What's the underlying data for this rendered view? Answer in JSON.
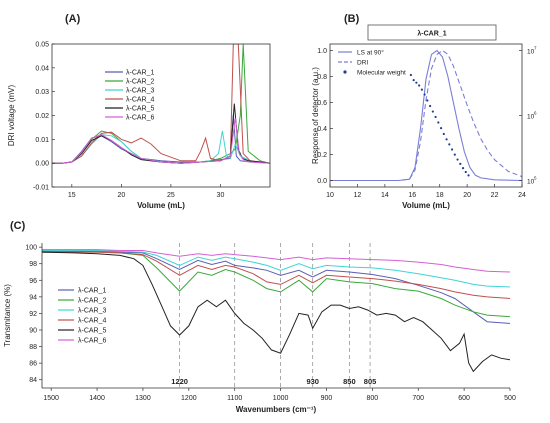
{
  "chart_data": [
    {
      "panel": "(A)",
      "type": "line",
      "title": "",
      "xlabel": "Volume (mL)",
      "ylabel": "DRI voltage (mV)",
      "xlim": [
        13,
        35
      ],
      "ylim": [
        -0.01,
        0.05
      ],
      "xticks": [
        15,
        20,
        25,
        30
      ],
      "yticks": [
        -0.01,
        0,
        0.01,
        0.02,
        0.03,
        0.04,
        0.05
      ],
      "ytick_labels": [
        "-0.01",
        "0.00",
        "0.01",
        "0.02",
        "0.03",
        "0.04",
        "0.05"
      ],
      "grid": false,
      "legend_position": "top-center",
      "series": [
        {
          "name": "λ-CAR_1",
          "color": "#5b5fb3",
          "x": [
            13,
            14,
            15,
            16,
            17,
            18,
            19,
            20,
            21,
            22,
            24,
            26,
            28,
            30,
            31,
            31.3,
            31.6,
            32,
            33,
            35
          ],
          "y": [
            0,
            0,
            0.0005,
            0.005,
            0.0105,
            0.0115,
            0.009,
            0.006,
            0.004,
            0.002,
            0.001,
            0.0005,
            0.0005,
            0.0015,
            0.002,
            0.0205,
            0.003,
            0.001,
            0.0005,
            0
          ]
        },
        {
          "name": "λ-CAR_2",
          "color": "#3aa83a",
          "x": [
            13,
            14,
            15,
            16,
            17,
            18,
            19,
            20,
            21,
            22,
            24,
            26,
            28,
            29,
            30,
            31,
            31.5,
            32,
            32.3,
            32.8,
            34,
            35
          ],
          "y": [
            0,
            0,
            0.0005,
            0.004,
            0.01,
            0.0135,
            0.0125,
            0.009,
            0.005,
            0.002,
            0.0005,
            0,
            0.0005,
            0.001,
            0.002,
            0.004,
            0.006,
            0.02,
            0.05,
            0.005,
            0.001,
            0
          ]
        },
        {
          "name": "λ-CAR_3",
          "color": "#40d4d4",
          "x": [
            13,
            14,
            15,
            16,
            17,
            18,
            19,
            20,
            21,
            22,
            24,
            26,
            28,
            29,
            29.8,
            30.2,
            30.6,
            31,
            31.5,
            32,
            33,
            35
          ],
          "y": [
            0,
            0,
            0.0005,
            0.003,
            0.008,
            0.012,
            0.0115,
            0.009,
            0.005,
            0.002,
            0.0005,
            0,
            0.0005,
            0.001,
            0.004,
            0.0135,
            0.003,
            0.002,
            0.008,
            0.003,
            0.001,
            0
          ]
        },
        {
          "name": "λ-CAR_4",
          "color": "#c0504d",
          "x": [
            13,
            14,
            15,
            16,
            17,
            18,
            19,
            20,
            21,
            22,
            23,
            24,
            26,
            27.5,
            28,
            28.5,
            29,
            30,
            31,
            31.3,
            31.8,
            32.3,
            33,
            35
          ],
          "y": [
            0,
            0,
            0.0005,
            0.003,
            0.0085,
            0.0125,
            0.013,
            0.01,
            0.0085,
            0.0105,
            0.008,
            0.004,
            0.001,
            0.001,
            0.005,
            0.0105,
            0.002,
            0.001,
            0.003,
            0.05,
            0.05,
            0.004,
            0.001,
            0
          ]
        },
        {
          "name": "λ-CAR_5",
          "color": "#222222",
          "x": [
            13,
            14,
            15,
            16,
            17,
            18,
            19,
            20,
            21,
            22,
            24,
            26,
            28,
            30,
            31,
            31.4,
            31.8,
            32.2,
            32.8,
            34,
            35
          ],
          "y": [
            0,
            0,
            0.0005,
            0.004,
            0.0095,
            0.0115,
            0.0095,
            0.0065,
            0.0035,
            0.0015,
            0.0005,
            0,
            0.0005,
            0.001,
            0.003,
            0.025,
            0.006,
            0.002,
            0.001,
            0.0005,
            0
          ]
        },
        {
          "name": "λ-CAR_6",
          "color": "#d55fd5",
          "x": [
            13,
            14,
            15,
            16,
            17,
            18,
            19,
            20,
            21,
            22,
            24,
            26,
            28,
            30,
            31,
            31.5,
            31.9,
            32.4,
            33,
            35
          ],
          "y": [
            0,
            0,
            0.0005,
            0.0045,
            0.0105,
            0.012,
            0.0095,
            0.0065,
            0.004,
            0.002,
            0.0005,
            0,
            0.0005,
            0.001,
            0.003,
            0.019,
            0.004,
            0.001,
            0.0005,
            0
          ]
        }
      ]
    },
    {
      "panel": "(B)",
      "type": "line",
      "title": "λ-CAR_1",
      "xlabel": "Volume (mL)",
      "ylabel": "Response of detector (a.u.)",
      "xlim": [
        10,
        24
      ],
      "ylim": [
        -0.05,
        1.05
      ],
      "xticks": [
        10,
        12,
        14,
        16,
        18,
        20,
        22,
        24
      ],
      "yticks": [
        0,
        0.2,
        0.4,
        0.6,
        0.8,
        1.0
      ],
      "ytick_labels": [
        "0.0",
        "0.2",
        "0.4",
        "0.6",
        "0.8",
        "1.0"
      ],
      "y2_scale": "log",
      "y2lim": [
        100000,
        10000000
      ],
      "y2_labels": [
        "10",
        "5",
        "10",
        "6",
        "10",
        "7"
      ],
      "grid": false,
      "legend_position": "top-left",
      "series": [
        {
          "name": "LS at 90°",
          "color": "#7a7fd6",
          "style": "solid",
          "x": [
            10,
            15,
            15.8,
            16.2,
            16.6,
            17,
            17.4,
            17.8,
            18.2,
            18.6,
            19,
            19.4,
            19.8,
            20.2,
            20.6,
            21,
            22,
            24
          ],
          "y": [
            0,
            0,
            0.01,
            0.1,
            0.4,
            0.78,
            0.97,
            1.0,
            0.95,
            0.8,
            0.6,
            0.4,
            0.22,
            0.1,
            0.04,
            0.02,
            0.005,
            0
          ]
        },
        {
          "name": "DRI",
          "color": "#7a7fd6",
          "style": "dashed",
          "x": [
            10,
            15,
            15.8,
            16.2,
            16.6,
            17,
            17.4,
            17.8,
            18.2,
            18.6,
            19,
            19.5,
            20,
            20.5,
            21,
            21.5,
            22,
            23,
            24
          ],
          "y": [
            0,
            0,
            0.01,
            0.08,
            0.3,
            0.62,
            0.86,
            0.97,
            1.0,
            0.97,
            0.88,
            0.73,
            0.58,
            0.44,
            0.32,
            0.23,
            0.16,
            0.07,
            0.03
          ]
        },
        {
          "name": "Molecular weight",
          "color": "#1f3f8f",
          "style": "dots",
          "x": [
            15.9,
            16.1,
            16.3,
            16.5,
            16.7,
            16.9,
            17.1,
            17.3,
            17.5,
            17.7,
            17.9,
            18.1,
            18.3,
            18.5,
            18.7,
            18.9,
            19.1,
            19.3,
            19.5,
            19.7,
            19.9,
            20.1
          ],
          "y": [
            4200000,
            3500000,
            3200000,
            2900000,
            2500000,
            2100000,
            1700000,
            1400000,
            1150000,
            950000,
            780000,
            640000,
            520000,
            430000,
            360000,
            300000,
            250000,
            210000,
            180000,
            155000,
            135000,
            120000
          ]
        }
      ]
    },
    {
      "panel": "(C)",
      "type": "line",
      "title": "",
      "xlabel": "Wavenumbers (cm⁻¹)",
      "ylabel": "Transmitance (%)",
      "xlim": [
        1520,
        500
      ],
      "ylim": [
        83,
        100.5
      ],
      "xticks": [
        1500,
        1400,
        1300,
        1200,
        1100,
        1000,
        900,
        800,
        700,
        600,
        500
      ],
      "yticks": [
        84,
        86,
        88,
        90,
        92,
        94,
        96,
        98,
        100
      ],
      "grid": false,
      "legend_position": "left",
      "reference_lines": [
        1220,
        1100,
        1000,
        930,
        850,
        805
      ],
      "annotations": [
        {
          "text": "1220",
          "x": 1220
        },
        {
          "text": "930",
          "x": 930
        },
        {
          "text": "850",
          "x": 850
        },
        {
          "text": "805",
          "x": 805
        }
      ],
      "series": [
        {
          "name": "λ-CAR_1",
          "color": "#5b5fb3",
          "x": [
            1520,
            1450,
            1400,
            1350,
            1300,
            1270,
            1220,
            1180,
            1150,
            1120,
            1100,
            1060,
            1030,
            1000,
            960,
            930,
            900,
            850,
            800,
            750,
            700,
            650,
            620,
            580,
            550,
            500
          ],
          "y": [
            99.5,
            99.5,
            99.5,
            99.4,
            99.3,
            98.6,
            97.3,
            98.4,
            97.9,
            98.3,
            97.8,
            97.5,
            97.2,
            96.6,
            97.2,
            96.4,
            97.2,
            97.0,
            96.7,
            96.2,
            95.4,
            94.5,
            93.8,
            92.2,
            91.0,
            90.8
          ]
        },
        {
          "name": "λ-CAR_2",
          "color": "#3aa83a",
          "x": [
            1520,
            1450,
            1400,
            1350,
            1300,
            1270,
            1220,
            1180,
            1150,
            1120,
            1100,
            1060,
            1030,
            1000,
            960,
            930,
            900,
            850,
            800,
            750,
            700,
            650,
            620,
            580,
            550,
            500
          ],
          "y": [
            99.4,
            99.4,
            99.4,
            99.3,
            99.0,
            97.5,
            94.7,
            97.0,
            96.6,
            97.3,
            97.0,
            96.0,
            95.0,
            94.6,
            96.0,
            94.6,
            96.2,
            95.8,
            95.6,
            95.0,
            94.7,
            93.8,
            93.0,
            92.2,
            91.8,
            91.6
          ]
        },
        {
          "name": "λ-CAR_3",
          "color": "#40d4d4",
          "x": [
            1520,
            1450,
            1400,
            1350,
            1300,
            1270,
            1220,
            1180,
            1150,
            1120,
            1100,
            1060,
            1030,
            1000,
            960,
            930,
            900,
            850,
            800,
            750,
            700,
            650,
            620,
            580,
            550,
            500
          ],
          "y": [
            99.6,
            99.6,
            99.6,
            99.5,
            99.4,
            99.0,
            97.8,
            98.8,
            98.4,
            98.8,
            98.6,
            98.2,
            97.8,
            97.2,
            98.0,
            97.4,
            97.8,
            97.6,
            97.5,
            97.2,
            96.8,
            96.3,
            96.0,
            95.5,
            95.3,
            95.2
          ]
        },
        {
          "name": "λ-CAR_4",
          "color": "#c0504d",
          "x": [
            1520,
            1450,
            1400,
            1350,
            1300,
            1270,
            1220,
            1180,
            1150,
            1120,
            1100,
            1060,
            1030,
            1000,
            960,
            930,
            900,
            850,
            800,
            750,
            700,
            650,
            620,
            580,
            550,
            500
          ],
          "y": [
            99.4,
            99.4,
            99.4,
            99.3,
            99.1,
            98.3,
            96.6,
            97.8,
            97.3,
            97.8,
            97.6,
            96.8,
            95.8,
            95.5,
            96.6,
            95.7,
            96.6,
            96.4,
            96.2,
            95.9,
            95.5,
            95.0,
            94.6,
            94.2,
            94.0,
            93.8
          ]
        },
        {
          "name": "λ-CAR_5",
          "color": "#222222",
          "x": [
            1520,
            1450,
            1400,
            1350,
            1320,
            1300,
            1280,
            1260,
            1240,
            1220,
            1200,
            1180,
            1160,
            1140,
            1120,
            1100,
            1080,
            1060,
            1040,
            1020,
            1000,
            980,
            960,
            940,
            930,
            910,
            890,
            870,
            850,
            830,
            810,
            790,
            770,
            750,
            730,
            710,
            690,
            670,
            650,
            630,
            610,
            600,
            590,
            580,
            560,
            540,
            520,
            500
          ],
          "y": [
            99.4,
            99.3,
            99.2,
            99.0,
            98.6,
            97.8,
            95.5,
            93.0,
            90.5,
            89.4,
            90.5,
            92.8,
            93.6,
            92.8,
            93.6,
            92.0,
            90.8,
            90.0,
            89.0,
            87.6,
            87.2,
            89.5,
            92.0,
            91.8,
            90.2,
            92.2,
            93.0,
            93.0,
            92.6,
            92.8,
            92.4,
            91.8,
            92.0,
            91.8,
            91.0,
            91.5,
            91.0,
            90.0,
            89.0,
            87.5,
            88.4,
            89.5,
            86.0,
            85.0,
            86.2,
            87.0,
            86.6,
            86.4
          ]
        },
        {
          "name": "λ-CAR_6",
          "color": "#d55fd5",
          "x": [
            1520,
            1450,
            1400,
            1350,
            1300,
            1270,
            1220,
            1180,
            1150,
            1120,
            1100,
            1060,
            1030,
            1000,
            960,
            930,
            900,
            850,
            800,
            750,
            700,
            650,
            620,
            580,
            550,
            500
          ],
          "y": [
            99.7,
            99.7,
            99.7,
            99.6,
            99.6,
            99.3,
            98.9,
            99.2,
            99.0,
            99.2,
            99.1,
            98.9,
            98.7,
            98.5,
            98.8,
            98.5,
            98.7,
            98.6,
            98.5,
            98.4,
            98.2,
            97.9,
            97.6,
            97.3,
            97.1,
            97.0
          ]
        }
      ]
    }
  ]
}
